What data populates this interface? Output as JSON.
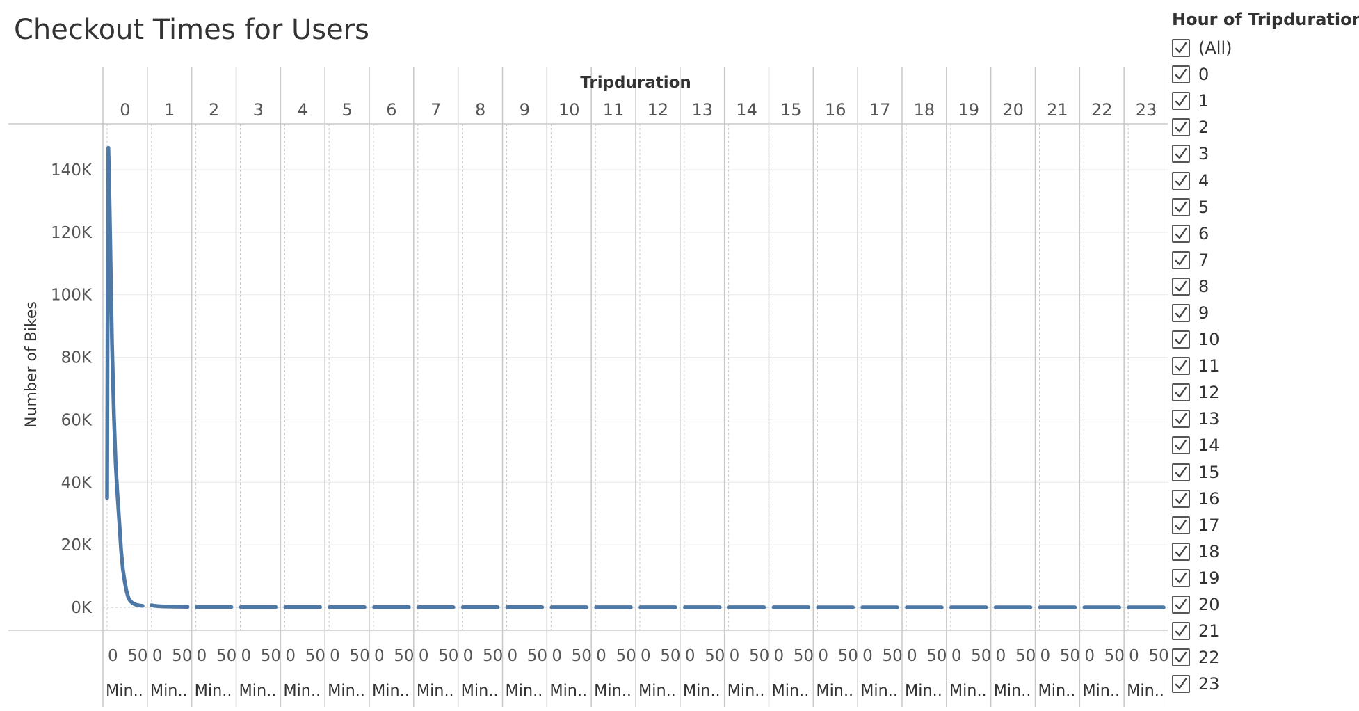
{
  "title": "Checkout Times for Users",
  "legend": {
    "title": "Hour of Tripduration",
    "items": [
      "(All)",
      "0",
      "1",
      "2",
      "3",
      "4",
      "5",
      "6",
      "7",
      "8",
      "9",
      "10",
      "11",
      "12",
      "13",
      "14",
      "15",
      "16",
      "17",
      "18",
      "19",
      "20",
      "21",
      "22",
      "23"
    ]
  },
  "colors": {
    "line": "#4e79a7",
    "grid": "#e8e8e8",
    "divider": "#c8c8c8",
    "text": "#555555"
  },
  "chart_data": {
    "type": "line",
    "title": "Checkout Times for Users",
    "column_header": "Tripduration",
    "ylabel": "Number of Bikes",
    "x_field_label": "Min..",
    "x_tick_labels": [
      "0",
      "50"
    ],
    "panels": [
      "0",
      "1",
      "2",
      "3",
      "4",
      "5",
      "6",
      "7",
      "8",
      "9",
      "10",
      "11",
      "12",
      "13",
      "14",
      "15",
      "16",
      "17",
      "18",
      "19",
      "20",
      "21",
      "22",
      "23"
    ],
    "y_ticks": [
      0,
      20000,
      40000,
      60000,
      80000,
      100000,
      120000,
      140000
    ],
    "y_tick_labels": [
      "0K",
      "20K",
      "40K",
      "60K",
      "80K",
      "100K",
      "120K",
      "140K"
    ],
    "ylim": [
      0,
      155000
    ],
    "xlim": [
      0,
      59
    ],
    "series": [
      {
        "panel": "0",
        "points": [
          [
            0,
            35000
          ],
          [
            1,
            110000
          ],
          [
            2,
            147000
          ],
          [
            3,
            140000
          ],
          [
            5,
            118000
          ],
          [
            8,
            85000
          ],
          [
            11,
            62000
          ],
          [
            14,
            46000
          ],
          [
            17,
            36000
          ],
          [
            20,
            27000
          ],
          [
            23,
            18000
          ],
          [
            26,
            12000
          ],
          [
            29,
            8000
          ],
          [
            32,
            5000
          ],
          [
            35,
            3000
          ],
          [
            38,
            2000
          ],
          [
            42,
            1300
          ],
          [
            48,
            800
          ],
          [
            53,
            600
          ],
          [
            58,
            500
          ]
        ]
      },
      {
        "panel": "1",
        "points": [
          [
            0,
            700
          ],
          [
            5,
            500
          ],
          [
            10,
            400
          ],
          [
            20,
            300
          ],
          [
            30,
            250
          ],
          [
            45,
            200
          ],
          [
            59,
            150
          ]
        ]
      },
      {
        "panel": "2",
        "level": 120
      },
      {
        "panel": "3",
        "level": 100
      },
      {
        "panel": "4",
        "level": 80
      },
      {
        "panel": "5",
        "level": 70
      },
      {
        "panel": "6",
        "level": 60
      },
      {
        "panel": "7",
        "level": 50
      },
      {
        "panel": "8",
        "level": 40
      },
      {
        "panel": "9",
        "level": 35
      },
      {
        "panel": "10",
        "level": 30
      },
      {
        "panel": "11",
        "level": 25
      },
      {
        "panel": "12",
        "level": 20
      },
      {
        "panel": "13",
        "level": 20
      },
      {
        "panel": "14",
        "level": 15
      },
      {
        "panel": "15",
        "level": 15
      },
      {
        "panel": "16",
        "level": 10
      },
      {
        "panel": "17",
        "level": 10
      },
      {
        "panel": "18",
        "level": 10
      },
      {
        "panel": "19",
        "level": 10
      },
      {
        "panel": "20",
        "level": 10
      },
      {
        "panel": "21",
        "level": 10
      },
      {
        "panel": "22",
        "level": 10
      },
      {
        "panel": "23",
        "level": 10
      }
    ]
  }
}
